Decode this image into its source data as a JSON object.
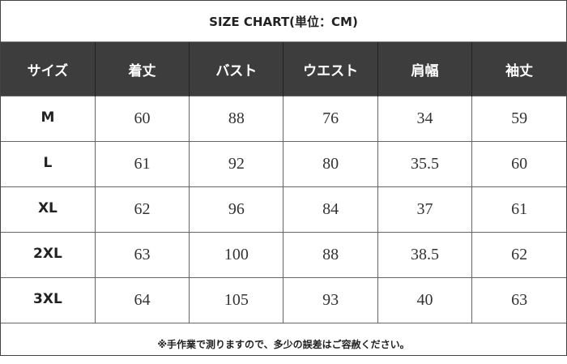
{
  "title": "SIZE CHART(単位：CM)",
  "headers": [
    "サイズ",
    "着丈",
    "バスト",
    "ウエスト",
    "肩幅",
    "袖丈"
  ],
  "rows": [
    [
      "M",
      "60",
      "88",
      "76",
      "34",
      "59"
    ],
    [
      "L",
      "61",
      "92",
      "80",
      "35.5",
      "60"
    ],
    [
      "XL",
      "62",
      "96",
      "84",
      "37",
      "61"
    ],
    [
      "2XL",
      "63",
      "100",
      "88",
      "38.5",
      "62"
    ],
    [
      "3XL",
      "64",
      "105",
      "93",
      "40",
      "63"
    ]
  ],
  "note": "※手作業で測りますので、多少の誤差はご容赦ください。",
  "colors": {
    "header_bg": "#3d3d3d",
    "header_text": "#ffffff"
  }
}
